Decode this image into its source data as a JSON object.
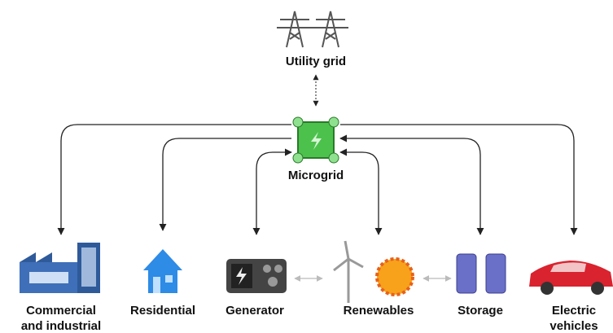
{
  "center": {
    "label": "Microgrid"
  },
  "top": {
    "label": "Utility grid"
  },
  "nodes": [
    {
      "lines": [
        "Commercial",
        "and industrial"
      ]
    },
    {
      "lines": [
        "Residential"
      ]
    },
    {
      "lines": [
        "Generator"
      ]
    },
    {
      "lines": [
        "Renewables"
      ]
    },
    {
      "lines": [
        "Storage"
      ]
    },
    {
      "lines": [
        "Electric",
        "vehicles"
      ]
    }
  ]
}
